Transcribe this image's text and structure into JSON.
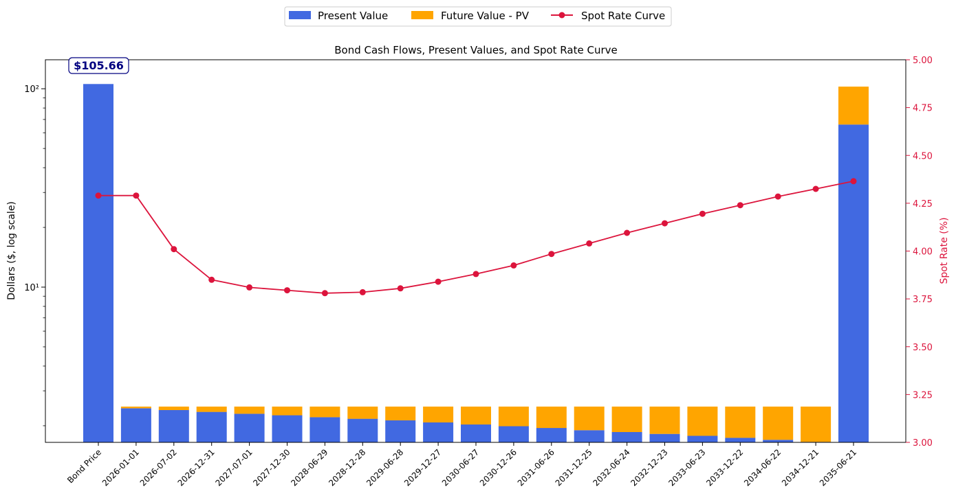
{
  "chart_data": {
    "type": "bar",
    "title": "Bond Cash Flows, Present Values, and Spot Rate Curve",
    "ylabel": "Dollars ($, log scale)",
    "y2label": "Spot Rate (%)",
    "yscale": "log",
    "ylim": [
      1.65,
      140
    ],
    "y_ticks": [
      10,
      100
    ],
    "y_tick_labels": [
      "10¹",
      "10²"
    ],
    "y2lim": [
      3.0,
      5.0
    ],
    "y2_ticks": [
      "3.00",
      "3.25",
      "3.50",
      "3.75",
      "4.00",
      "4.25",
      "4.50",
      "4.75",
      "5.00"
    ],
    "legend_position": "top-center",
    "annotation": "$105.66",
    "categories": [
      "Bond Price",
      "2026-01-01",
      "2026-07-02",
      "2026-12-31",
      "2027-07-01",
      "2027-12-30",
      "2028-06-29",
      "2028-12-28",
      "2029-06-28",
      "2029-12-27",
      "2030-06-27",
      "2030-12-26",
      "2031-06-26",
      "2031-12-25",
      "2032-06-24",
      "2032-12-23",
      "2033-06-23",
      "2033-12-22",
      "2034-06-22",
      "2034-12-21",
      "2035-06-21"
    ],
    "series": [
      {
        "name": "Present Value",
        "color": "#4169e1",
        "values": [
          105.66,
          2.45,
          2.4,
          2.35,
          2.3,
          2.26,
          2.21,
          2.17,
          2.13,
          2.08,
          2.03,
          1.99,
          1.95,
          1.9,
          1.86,
          1.82,
          1.78,
          1.74,
          1.7,
          1.66,
          66.0
        ]
      },
      {
        "name": "Future Value - PV",
        "color": "#ffa500",
        "values": [
          0,
          0.05,
          0.1,
          0.15,
          0.2,
          0.24,
          0.29,
          0.33,
          0.37,
          0.42,
          0.47,
          0.51,
          0.55,
          0.6,
          0.64,
          0.68,
          0.72,
          0.76,
          0.8,
          0.84,
          36.5
        ]
      },
      {
        "name": "Spot Rate Curve",
        "type": "line",
        "axis": "right",
        "color": "#dc143c",
        "values": [
          4.29,
          4.29,
          4.01,
          3.85,
          3.81,
          3.795,
          3.78,
          3.785,
          3.805,
          3.84,
          3.88,
          3.925,
          3.985,
          4.04,
          4.095,
          4.145,
          4.195,
          4.24,
          4.285,
          4.325,
          4.365
        ]
      }
    ]
  }
}
